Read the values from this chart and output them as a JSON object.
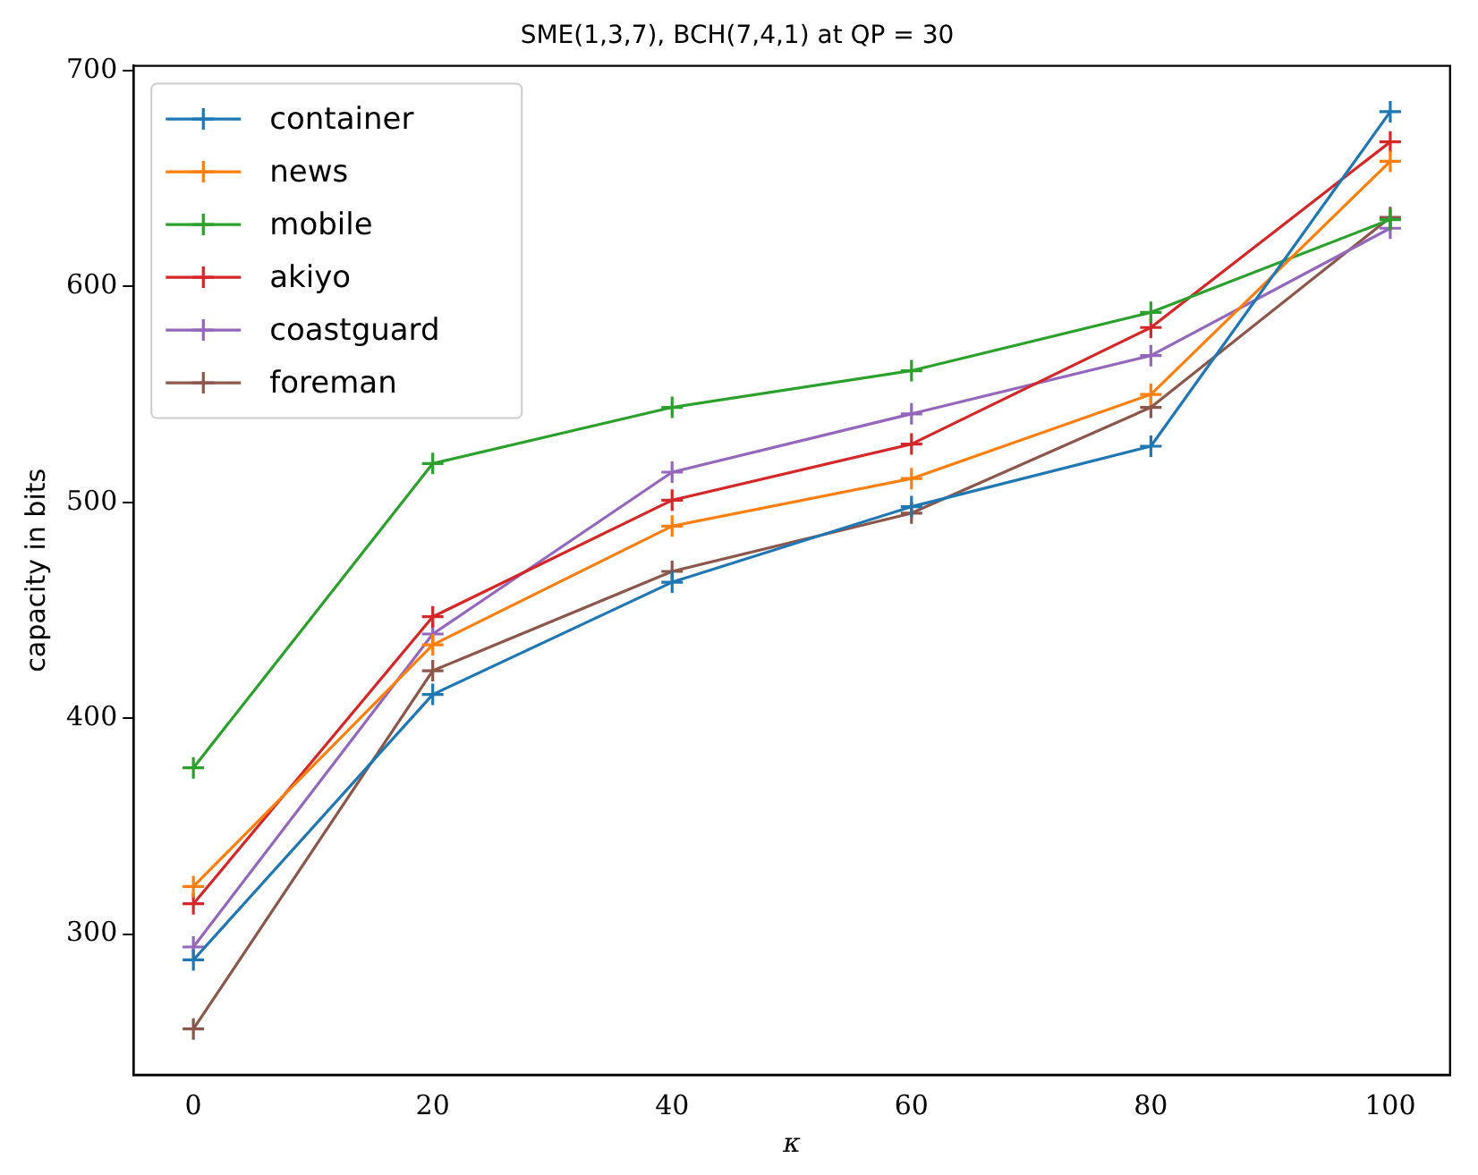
{
  "chart_data": {
    "type": "line",
    "title": "SME(1,3,7), BCH(7,4,1) at QP = 30",
    "xlabel": "κ",
    "ylabel": "capacity in bits",
    "x": [
      0,
      20,
      40,
      60,
      80,
      100
    ],
    "series": [
      {
        "name": "container",
        "color": "#1f77b4",
        "values": [
          288,
          411,
          463,
          498,
          526,
          681
        ]
      },
      {
        "name": "news",
        "color": "#ff7f0e",
        "values": [
          322,
          434,
          489,
          511,
          550,
          658
        ]
      },
      {
        "name": "mobile",
        "color": "#2ca02c",
        "values": [
          377,
          518,
          544,
          561,
          588,
          631
        ]
      },
      {
        "name": "akiyo",
        "color": "#d62728",
        "values": [
          314,
          447,
          501,
          527,
          581,
          667
        ]
      },
      {
        "name": "coastguard",
        "color": "#9467bd",
        "values": [
          294,
          439,
          514,
          541,
          568,
          627
        ]
      },
      {
        "name": "foreman",
        "color": "#8c564b",
        "values": [
          256,
          422,
          468,
          495,
          544,
          632
        ]
      }
    ],
    "xlim": [
      -5,
      105
    ],
    "xticks": [
      0,
      20,
      40,
      60,
      80,
      100
    ],
    "ylim": [
      234.75,
      702.25
    ],
    "yticks": [
      300,
      400,
      500,
      600,
      700
    ],
    "grid": false,
    "legend": "top left",
    "marker": "cross",
    "line_style": "solid"
  }
}
